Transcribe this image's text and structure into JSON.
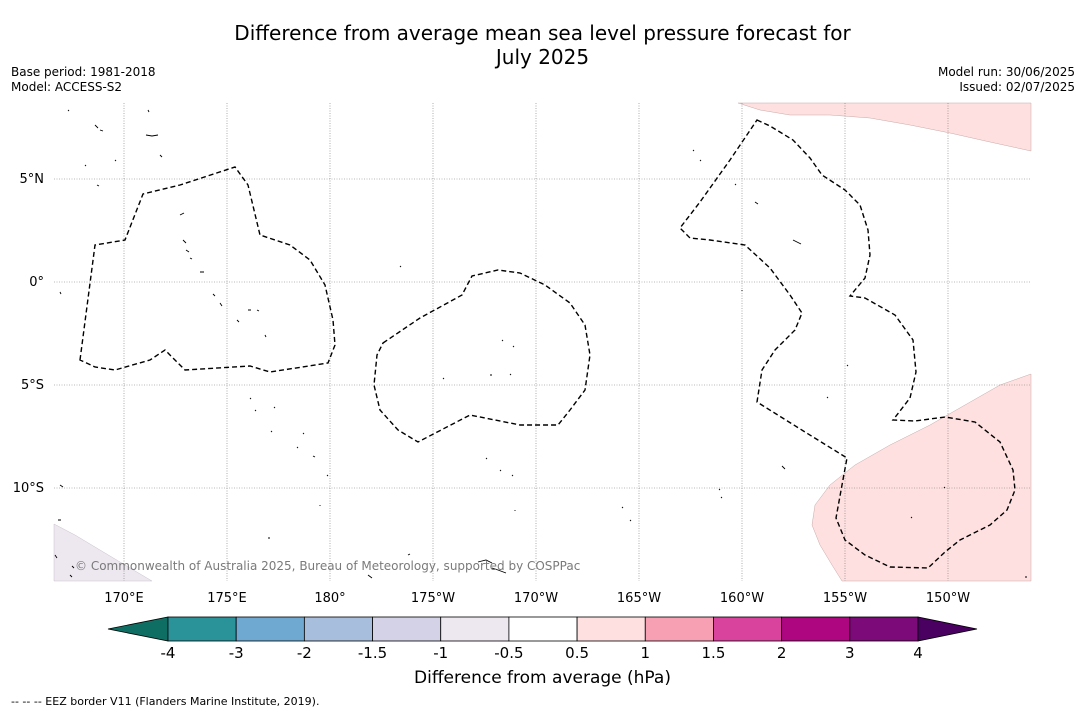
{
  "title_line1": "Difference from average mean sea level pressure forecast for",
  "title_line2": "July 2025",
  "base_period": "Base period: 1981-2018",
  "model": "Model: ACCESS-S2",
  "model_run": "Model run: 30/06/2025",
  "issued": "Issued: 02/07/2025",
  "copyright": "© Commonwealth of Australia 2025, Bureau of Meteorology, supported by COSPPac",
  "colorbar_title": "Difference from average (hPa)",
  "footer_note": "-- -- -- EEZ border V11 (Flanders Marine Institute, 2019).",
  "lon_labels": [
    "170°E",
    "175°E",
    "180°",
    "175°W",
    "170°W",
    "165°W",
    "160°W",
    "155°W",
    "150°W"
  ],
  "lat_labels": [
    "5°N",
    "0°",
    "5°S",
    "10°S"
  ],
  "colorbar": {
    "ticks": [
      "-4",
      "-3",
      "-2",
      "-1.5",
      "-1",
      "-0.5",
      "0.5",
      "1",
      "1.5",
      "2",
      "3",
      "4"
    ],
    "colors": [
      "#0f6e63",
      "#2a9399",
      "#6fa9d2",
      "#a8bedd",
      "#d3d2e6",
      "#ede7f0",
      "#ffffff",
      "#fde0df",
      "#f8a0b3",
      "#d9439e",
      "#ad0680",
      "#7d0a79",
      "#4a0060"
    ]
  }
}
